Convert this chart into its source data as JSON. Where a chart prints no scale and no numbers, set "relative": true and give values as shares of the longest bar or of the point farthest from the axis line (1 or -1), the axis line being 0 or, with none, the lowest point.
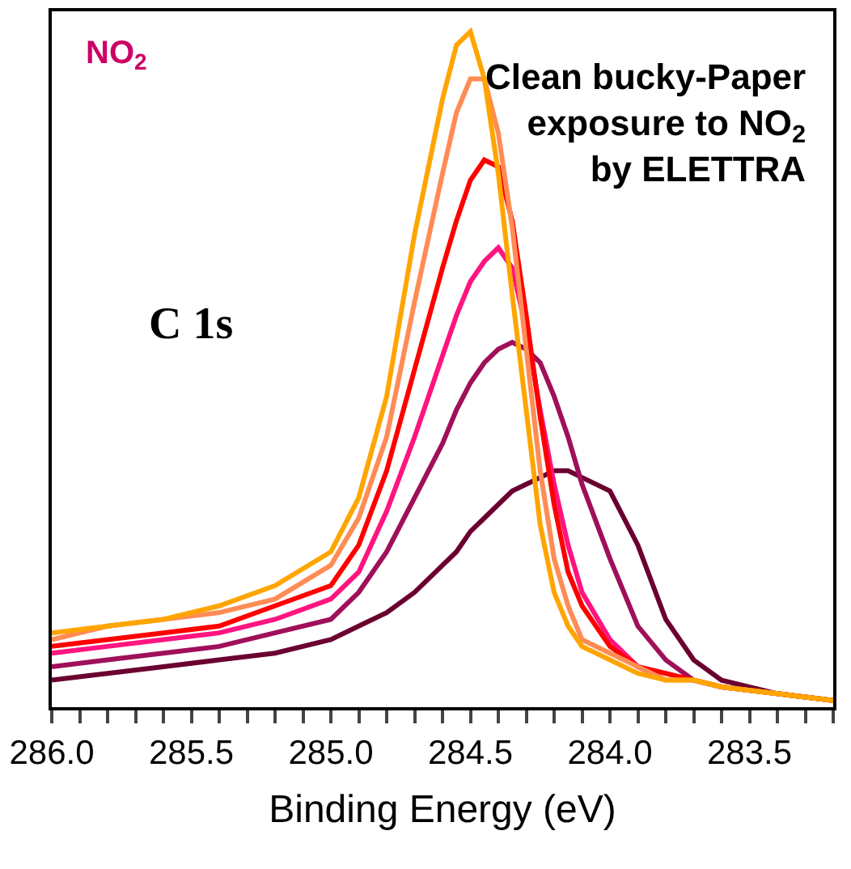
{
  "chart_data": {
    "type": "line",
    "relative": true,
    "xlabel": "Binding Energy (eV)",
    "x": [
      286.0,
      285.8,
      285.6,
      285.4,
      285.2,
      285.0,
      284.9,
      284.8,
      284.7,
      284.6,
      284.55,
      284.5,
      284.45,
      284.4,
      284.35,
      284.3,
      284.25,
      284.2,
      284.15,
      284.1,
      284.0,
      283.9,
      283.8,
      283.7,
      283.6,
      283.4,
      283.2
    ],
    "xlim": [
      286.0,
      283.2
    ],
    "xticks": [
      {
        "value": 286.0,
        "label": "286.0"
      },
      {
        "value": 285.9,
        "label": null
      },
      {
        "value": 285.8,
        "label": null
      },
      {
        "value": 285.7,
        "label": null
      },
      {
        "value": 285.6,
        "label": null
      },
      {
        "value": 285.5,
        "label": "285.5"
      },
      {
        "value": 285.4,
        "label": null
      },
      {
        "value": 285.3,
        "label": null
      },
      {
        "value": 285.2,
        "label": null
      },
      {
        "value": 285.1,
        "label": null
      },
      {
        "value": 285.0,
        "label": "285.0"
      },
      {
        "value": 284.9,
        "label": null
      },
      {
        "value": 284.8,
        "label": null
      },
      {
        "value": 284.7,
        "label": null
      },
      {
        "value": 284.6,
        "label": null
      },
      {
        "value": 284.5,
        "label": "284.5"
      },
      {
        "value": 284.4,
        "label": null
      },
      {
        "value": 284.3,
        "label": null
      },
      {
        "value": 284.2,
        "label": null
      },
      {
        "value": 284.1,
        "label": null
      },
      {
        "value": 284.0,
        "label": "284.0"
      },
      {
        "value": 283.9,
        "label": null
      },
      {
        "value": 283.8,
        "label": null
      },
      {
        "value": 283.7,
        "label": null
      },
      {
        "value": 283.6,
        "label": null
      },
      {
        "value": 283.5,
        "label": "283.5"
      },
      {
        "value": 283.4,
        "label": null
      },
      {
        "value": 283.3,
        "label": null
      },
      {
        "value": 283.2,
        "label": null
      }
    ],
    "series": [
      {
        "color": "#6b0030",
        "values": [
          0.04,
          0.05,
          0.06,
          0.07,
          0.08,
          0.1,
          0.12,
          0.14,
          0.17,
          0.21,
          0.23,
          0.26,
          0.28,
          0.3,
          0.32,
          0.33,
          0.34,
          0.35,
          0.35,
          0.34,
          0.32,
          0.24,
          0.13,
          0.07,
          0.04,
          0.02,
          0.01
        ]
      },
      {
        "color": "#a0105a",
        "values": [
          0.06,
          0.07,
          0.08,
          0.09,
          0.11,
          0.13,
          0.17,
          0.23,
          0.31,
          0.39,
          0.44,
          0.48,
          0.51,
          0.53,
          0.54,
          0.53,
          0.51,
          0.46,
          0.4,
          0.33,
          0.22,
          0.12,
          0.07,
          0.04,
          0.03,
          0.02,
          0.01
        ]
      },
      {
        "color": "#ff1480",
        "values": [
          0.08,
          0.09,
          0.1,
          0.11,
          0.13,
          0.16,
          0.2,
          0.29,
          0.4,
          0.52,
          0.58,
          0.63,
          0.66,
          0.68,
          0.65,
          0.56,
          0.44,
          0.33,
          0.24,
          0.17,
          0.1,
          0.06,
          0.04,
          null,
          null,
          null,
          null
        ]
      },
      {
        "color": "#ff0000",
        "values": [
          0.09,
          0.1,
          0.11,
          0.12,
          0.15,
          0.18,
          0.24,
          0.35,
          0.5,
          0.65,
          0.72,
          0.78,
          0.81,
          0.8,
          0.72,
          0.58,
          0.43,
          0.3,
          0.2,
          0.15,
          0.09,
          0.06,
          0.05,
          0.04,
          0.03,
          0.02,
          0.01
        ]
      },
      {
        "color": "#ff8c55",
        "values": [
          0.1,
          0.12,
          0.13,
          0.14,
          0.16,
          0.21,
          0.28,
          0.4,
          0.6,
          0.79,
          0.88,
          0.93,
          0.93,
          0.85,
          0.71,
          0.53,
          0.35,
          0.22,
          0.15,
          0.1,
          0.08,
          0.06,
          0.04,
          0.04,
          0.03,
          0.02,
          0.01
        ]
      },
      {
        "color": "#ffa500",
        "values": [
          0.11,
          0.12,
          0.13,
          0.15,
          0.18,
          0.23,
          0.31,
          0.46,
          0.7,
          0.9,
          0.98,
          1.0,
          0.93,
          0.79,
          0.61,
          0.44,
          0.27,
          0.17,
          0.12,
          0.09,
          0.07,
          0.05,
          0.04,
          0.04,
          0.03,
          0.02,
          0.01
        ]
      }
    ],
    "annotations": [
      "NO$_{2}$",
      "Clean bucky-Paper\nexposure to NO$_{2}$\nby ELETTRA",
      "C 1s"
    ],
    "marker": "none",
    "line_style": "solid"
  }
}
